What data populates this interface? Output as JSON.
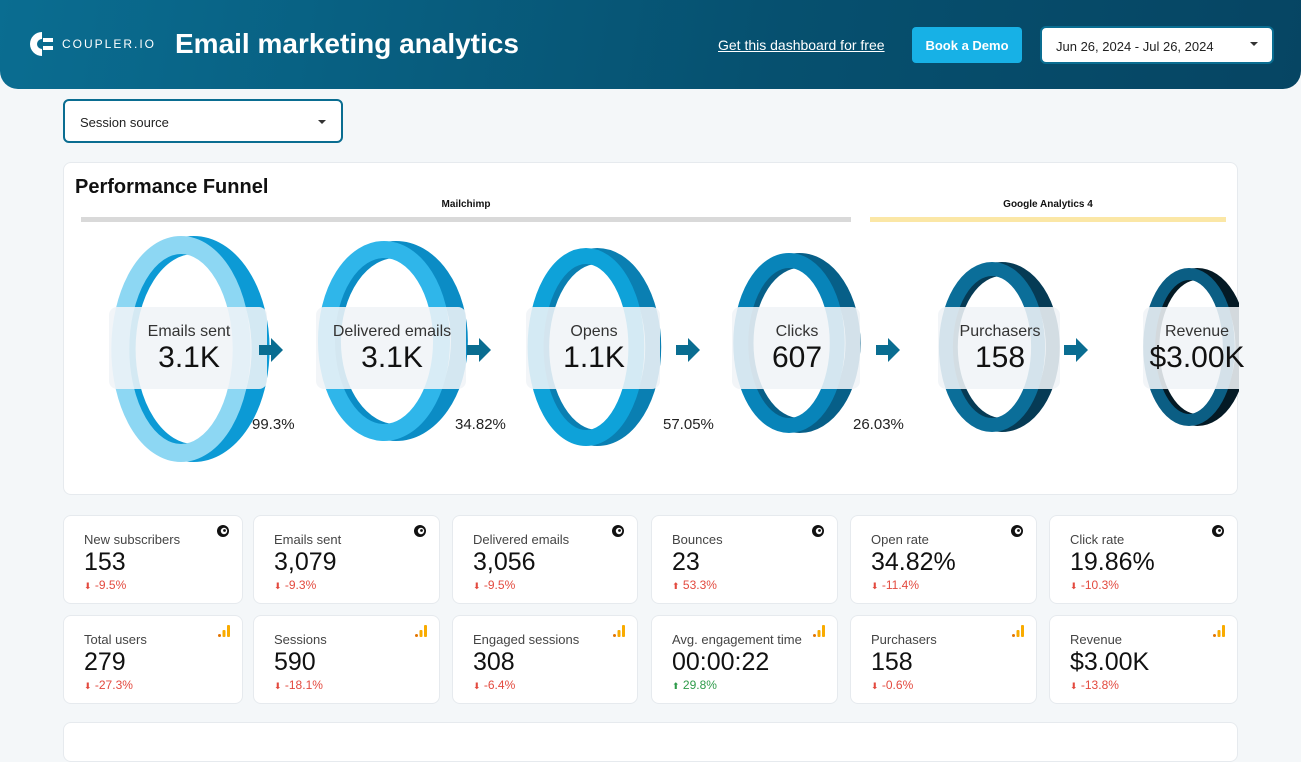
{
  "header": {
    "logo": "COUPLER.IO",
    "title": "Email marketing analytics",
    "link": "Get this dashboard for free",
    "demo": "Book a Demo",
    "date_range": "Jun 26, 2024 - Jul 26, 2024"
  },
  "filter": {
    "session_source": "Session source"
  },
  "funnel": {
    "title": "Performance Funnel",
    "sources": [
      {
        "name": "Mailchimp",
        "color": "#d9d9d9"
      },
      {
        "name": "Google Analytics 4",
        "color": "#fbe7a6"
      }
    ],
    "stages": [
      {
        "label": "Emails sent",
        "value": "3.1K",
        "front": "#8dd7f3",
        "back": "#0c9ad5"
      },
      {
        "label": "Delivered emails",
        "value": "3.1K",
        "front": "#2fb6ea",
        "back": "#0b8cc5"
      },
      {
        "label": "Opens",
        "value": "1.1K",
        "front": "#0ea2d9",
        "back": "#0a7fb2"
      },
      {
        "label": "Clicks",
        "value": "607",
        "front": "#0884b9",
        "back": "#075f88"
      },
      {
        "label": "Purchasers",
        "value": "158",
        "front": "#0b6e99",
        "back": "#063b55"
      },
      {
        "label": "Revenue",
        "value": "$3.00K",
        "front": "#0b5e84",
        "back": "#041a25"
      }
    ],
    "conversions": [
      "99.3%",
      "34.82%",
      "57.05%",
      "26.03%"
    ],
    "arrow_color": "#0a6d91"
  },
  "cards": [
    {
      "label": "New subscribers",
      "value": "153",
      "delta": "-9.5%",
      "dir": "down",
      "source": "mailchimp"
    },
    {
      "label": "Emails sent",
      "value": "3,079",
      "delta": "-9.3%",
      "dir": "down",
      "source": "mailchimp"
    },
    {
      "label": "Delivered emails",
      "value": "3,056",
      "delta": "-9.5%",
      "dir": "down",
      "source": "mailchimp"
    },
    {
      "label": "Bounces",
      "value": "23",
      "delta": "53.3%",
      "dir": "up-bad",
      "source": "mailchimp"
    },
    {
      "label": "Open rate",
      "value": "34.82%",
      "delta": "-11.4%",
      "dir": "down",
      "source": "mailchimp"
    },
    {
      "label": "Click rate",
      "value": "19.86%",
      "delta": "-10.3%",
      "dir": "down",
      "source": "mailchimp"
    },
    {
      "label": "Total users",
      "value": "279",
      "delta": "-27.3%",
      "dir": "down",
      "source": "ga4"
    },
    {
      "label": "Sessions",
      "value": "590",
      "delta": "-18.1%",
      "dir": "down",
      "source": "ga4"
    },
    {
      "label": "Engaged sessions",
      "value": "308",
      "delta": "-6.4%",
      "dir": "down",
      "source": "ga4"
    },
    {
      "label": "Avg. engagement time",
      "value": "00:00:22",
      "delta": "29.8%",
      "dir": "up",
      "source": "ga4"
    },
    {
      "label": "Purchasers",
      "value": "158",
      "delta": "-0.6%",
      "dir": "down",
      "source": "ga4"
    },
    {
      "label": "Revenue",
      "value": "$3.00K",
      "delta": "-13.8%",
      "dir": "down",
      "source": "ga4"
    }
  ]
}
